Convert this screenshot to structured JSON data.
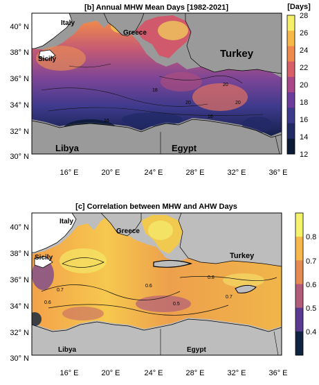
{
  "panels": [
    {
      "title": "[b] Annual MHW Mean Days [1982-2021]",
      "colorbar": {
        "unit_label": "[Days]",
        "ticks": [
          "28",
          "26",
          "24",
          "22",
          "20",
          "18",
          "16",
          "14",
          "12"
        ],
        "colors": [
          "#f5ef6a",
          "#f7b84a",
          "#ef8a4c",
          "#d85f67",
          "#a8478a",
          "#6e3c9a",
          "#3d3a8c",
          "#222a66",
          "#0c1a36"
        ]
      },
      "x_ticks": [
        "16° E",
        "20° E",
        "24° E",
        "28° E",
        "32° E",
        "36° E"
      ],
      "y_ticks": [
        "40° N",
        "38° N",
        "36° N",
        "34° N",
        "32° N",
        "30° N"
      ],
      "land_labels": {
        "italy": "Italy",
        "greece": "Greece",
        "turkey": "Turkey",
        "sicily": "Sicily",
        "libya": "Libya",
        "egypt": "Egypt"
      },
      "land_color": "#9a9a9a",
      "contour_labels": [
        "16",
        "20",
        "20",
        "20",
        "16",
        "18"
      ]
    },
    {
      "title": "[c] Correlation between MHW and AHW Days",
      "colorbar": {
        "unit_label": "",
        "ticks": [
          "0.8",
          "0.7",
          "0.6",
          "0.5",
          "0.4"
        ],
        "colors": [
          "#f3f26a",
          "#f6b84c",
          "#e58a52",
          "#b05c7a",
          "#5a3a8e",
          "#0f2440"
        ]
      },
      "x_ticks": [
        "16° E",
        "20° E",
        "24° E",
        "28° E",
        "32° E",
        "36° E"
      ],
      "y_ticks": [
        "40° N",
        "38° N",
        "36° N",
        "34° N",
        "32° N",
        "30° N"
      ],
      "land_labels": {
        "italy": "Italy",
        "greece": "Greece",
        "turkey": "Turkey",
        "sicily": "Sicily",
        "libya": "Libya",
        "egypt": "Egypt"
      },
      "land_color": "#bdbdbd",
      "contour_labels": [
        "0.6",
        "0.7",
        "0.6",
        "0.5",
        "0.8",
        "0.7"
      ]
    }
  ]
}
